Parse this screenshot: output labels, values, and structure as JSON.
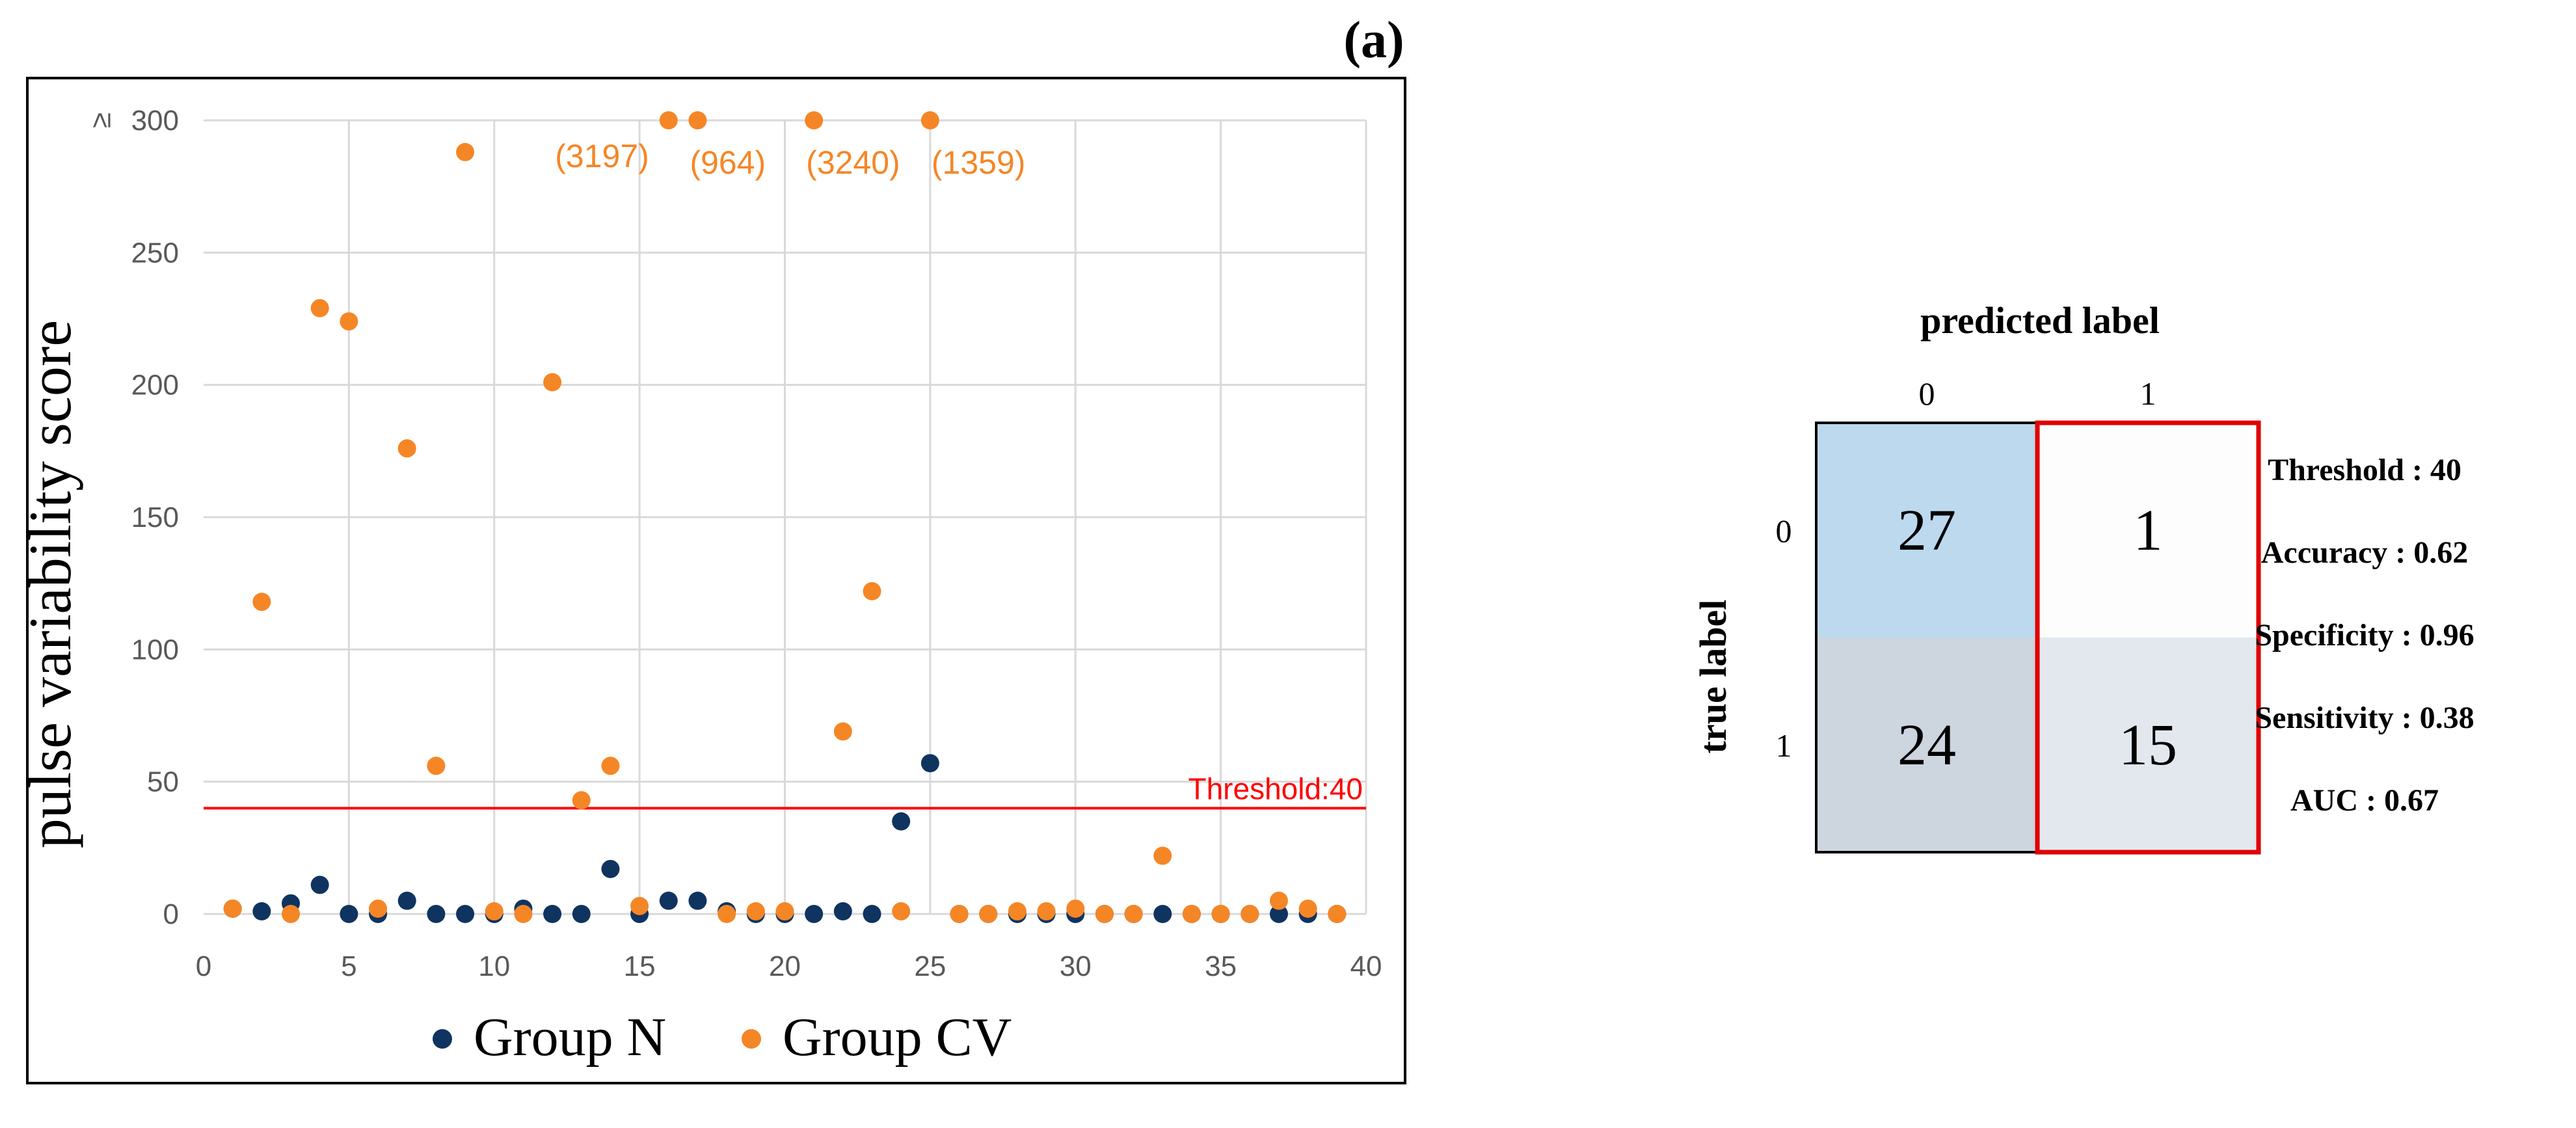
{
  "panel_label": "(a)",
  "chart_data": [
    {
      "type": "scatter",
      "title": "",
      "xlabel": "",
      "ylabel": "pulse variability score",
      "xlim": [
        0,
        40
      ],
      "ylim": [
        0,
        300
      ],
      "x_ticks": [
        0,
        5,
        10,
        15,
        20,
        25,
        30,
        35,
        40
      ],
      "y_ticks": [
        0,
        50,
        100,
        150,
        200,
        250,
        300
      ],
      "y_top_tick_label": "≥ 300",
      "grid": true,
      "legend_position": "bottom",
      "threshold": {
        "value": 40,
        "label": "Threshold:40",
        "color": "#ff0000"
      },
      "series": [
        {
          "name": "Group N",
          "color": "#0f3460",
          "points": [
            [
              1,
              2
            ],
            [
              2,
              1
            ],
            [
              3,
              4
            ],
            [
              4,
              11
            ],
            [
              5,
              0
            ],
            [
              6,
              0
            ],
            [
              7,
              5
            ],
            [
              8,
              0
            ],
            [
              9,
              0
            ],
            [
              10,
              0
            ],
            [
              11,
              2
            ],
            [
              12,
              0
            ],
            [
              13,
              0
            ],
            [
              14,
              17
            ],
            [
              15,
              0
            ],
            [
              16,
              5
            ],
            [
              17,
              5
            ],
            [
              18,
              1
            ],
            [
              19,
              0
            ],
            [
              20,
              0
            ],
            [
              21,
              0
            ],
            [
              22,
              1
            ],
            [
              23,
              0
            ],
            [
              24,
              35
            ],
            [
              25,
              57
            ],
            [
              26,
              0
            ],
            [
              27,
              0
            ],
            [
              28,
              0
            ],
            [
              29,
              0
            ],
            [
              30,
              0
            ],
            [
              31,
              0
            ],
            [
              32,
              0
            ],
            [
              33,
              0
            ],
            [
              34,
              0
            ],
            [
              35,
              0
            ],
            [
              36,
              0
            ],
            [
              37,
              0
            ],
            [
              38,
              0
            ],
            [
              39,
              0
            ]
          ]
        },
        {
          "name": "Group CV",
          "color": "#f58626",
          "points": [
            [
              1,
              2
            ],
            [
              2,
              118
            ],
            [
              3,
              0
            ],
            [
              4,
              229
            ],
            [
              5,
              224
            ],
            [
              6,
              2
            ],
            [
              7,
              176
            ],
            [
              8,
              56
            ],
            [
              9,
              288
            ],
            [
              10,
              1
            ],
            [
              11,
              0
            ],
            [
              12,
              201
            ],
            [
              13,
              43
            ],
            [
              14,
              56
            ],
            [
              15,
              3
            ],
            [
              16,
              300
            ],
            [
              17,
              300
            ],
            [
              18,
              0
            ],
            [
              19,
              1
            ],
            [
              20,
              1
            ],
            [
              21,
              300
            ],
            [
              22,
              69
            ],
            [
              23,
              122
            ],
            [
              24,
              1
            ],
            [
              25,
              300
            ],
            [
              26,
              0
            ],
            [
              27,
              0
            ],
            [
              28,
              1
            ],
            [
              29,
              1
            ],
            [
              30,
              2
            ],
            [
              31,
              0
            ],
            [
              32,
              0
            ],
            [
              33,
              22
            ],
            [
              34,
              0
            ],
            [
              35,
              0
            ],
            [
              36,
              0
            ],
            [
              37,
              5
            ],
            [
              38,
              2
            ],
            [
              39,
              0
            ]
          ]
        }
      ],
      "annotations": [
        {
          "x": 16,
          "text": "(3197)"
        },
        {
          "x": 17,
          "text": "(964)"
        },
        {
          "x": 21,
          "text": "(3240)"
        },
        {
          "x": 25,
          "text": "(1359)"
        }
      ]
    },
    {
      "type": "heatmap",
      "title": "predicted label",
      "xlabel": "predicted label",
      "ylabel": "true label",
      "col_labels": [
        "0",
        "1"
      ],
      "row_labels": [
        "0",
        "1"
      ],
      "values": [
        [
          27,
          1
        ],
        [
          24,
          15
        ]
      ],
      "cell_colors": [
        [
          "#bcd9ee",
          "#fdfdfd"
        ],
        [
          "#cdd5df",
          "#e3e8ef"
        ]
      ],
      "highlight_color": "#e00000",
      "metrics": [
        "Threshold : 40",
        "Accuracy : 0.62",
        "Specificity : 0.96",
        "Sensitivity : 0.38",
        "AUC : 0.67"
      ]
    }
  ]
}
